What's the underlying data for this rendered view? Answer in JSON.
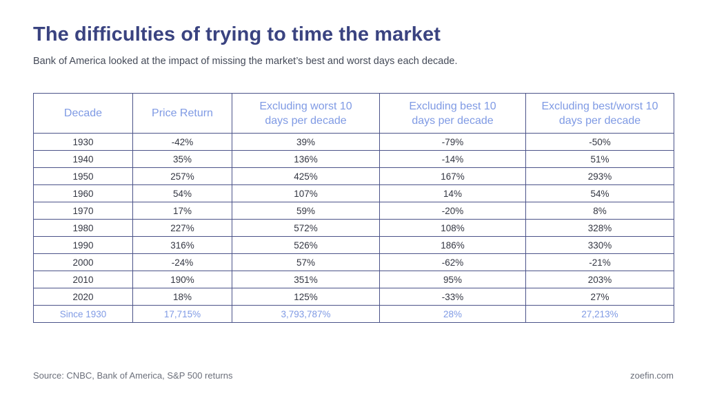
{
  "title": "The difficulties of trying to time the market",
  "subtitle": "Bank of America looked at the impact of missing the market’s best and worst days each decade.",
  "table": {
    "headers": [
      "Decade",
      "Price Return",
      "Excluding worst 10 days per decade",
      "Excluding best 10 days per decade",
      "Excluding best/worst 10 days per decade"
    ],
    "rows": [
      [
        "1930",
        "-42%",
        "39%",
        "-79%",
        "-50%"
      ],
      [
        "1940",
        "35%",
        "136%",
        "-14%",
        "51%"
      ],
      [
        "1950",
        "257%",
        "425%",
        "167%",
        "293%"
      ],
      [
        "1960",
        "54%",
        "107%",
        "14%",
        "54%"
      ],
      [
        "1970",
        "17%",
        "59%",
        "-20%",
        "8%"
      ],
      [
        "1980",
        "227%",
        "572%",
        "108%",
        "328%"
      ],
      [
        "1990",
        "316%",
        "526%",
        "186%",
        "330%"
      ],
      [
        "2000",
        "-24%",
        "57%",
        "-62%",
        "-21%"
      ],
      [
        "2010",
        "190%",
        "351%",
        "95%",
        "203%"
      ],
      [
        "2020",
        "18%",
        "125%",
        "-33%",
        "27%"
      ]
    ],
    "total": [
      "Since 1930",
      "17,715%",
      "3,793,787%",
      "28%",
      "27,213%"
    ]
  },
  "footer": {
    "source": "Source: CNBC, Bank of America, S&P 500 returns",
    "brand": "zoefin.com"
  },
  "colors": {
    "title": "#3a4380",
    "accent": "#7f9ae4",
    "border": "#4a5288"
  }
}
